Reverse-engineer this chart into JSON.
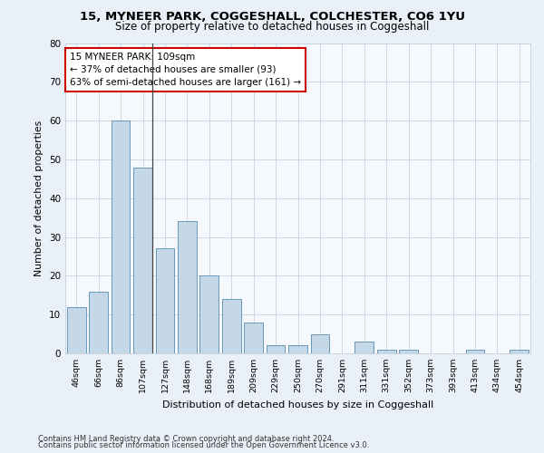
{
  "title1": "15, MYNEER PARK, COGGESHALL, COLCHESTER, CO6 1YU",
  "title2": "Size of property relative to detached houses in Coggeshall",
  "xlabel": "Distribution of detached houses by size in Coggeshall",
  "ylabel": "Number of detached properties",
  "categories": [
    "46sqm",
    "66sqm",
    "86sqm",
    "107sqm",
    "127sqm",
    "148sqm",
    "168sqm",
    "189sqm",
    "209sqm",
    "229sqm",
    "250sqm",
    "270sqm",
    "291sqm",
    "311sqm",
    "331sqm",
    "352sqm",
    "373sqm",
    "393sqm",
    "413sqm",
    "434sqm",
    "454sqm"
  ],
  "values": [
    12,
    16,
    60,
    48,
    27,
    34,
    20,
    14,
    8,
    2,
    2,
    5,
    0,
    3,
    1,
    1,
    0,
    0,
    1,
    0,
    1
  ],
  "bar_color": "#c5d8e8",
  "bar_edge_color": "#6899b8",
  "vline_x_index": 3,
  "marker_label_line1": "15 MYNEER PARK: 109sqm",
  "marker_label_line2": "← 37% of detached houses are smaller (93)",
  "marker_label_line3": "63% of semi-detached houses are larger (161) →",
  "annotation_box_color": "#ffffff",
  "annotation_box_edge_color": "#cc0000",
  "ylim": [
    0,
    80
  ],
  "yticks": [
    0,
    10,
    20,
    30,
    40,
    50,
    60,
    70,
    80
  ],
  "footer1": "Contains HM Land Registry data © Crown copyright and database right 2024.",
  "footer2": "Contains public sector information licensed under the Open Government Licence v3.0.",
  "bg_color": "#eaf0f8",
  "plot_bg_color": "#f5f8fd",
  "grid_color": "#c8d4e0"
}
